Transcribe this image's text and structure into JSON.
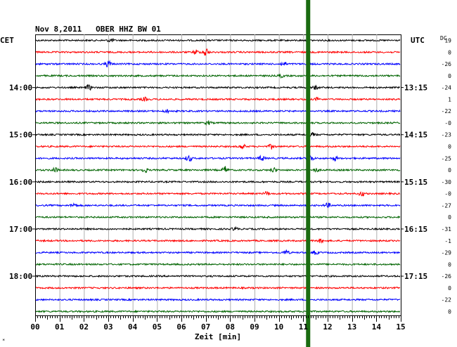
{
  "chart_data": {
    "type": "line",
    "title": "Nov 8,2011   OBER HHZ BW 01",
    "left_timezone": "CET",
    "right_timezone": "UTC",
    "dc_label": "DC",
    "xlabel": "Zeit [min]",
    "xlim": [
      0,
      15
    ],
    "x_ticks": [
      "00",
      "01",
      "02",
      "03",
      "04",
      "05",
      "06",
      "07",
      "08",
      "09",
      "10",
      "11",
      "12",
      "13",
      "14",
      "15"
    ],
    "grid": true,
    "trace_colors": [
      "#000000",
      "#ff0000",
      "#0000ff",
      "#006400"
    ],
    "highlight_color": "#1a6b10",
    "highlight_minute": 11.2,
    "left_hour_labels": [
      {
        "trace": 4,
        "label": "14:00"
      },
      {
        "trace": 8,
        "label": "15:00"
      },
      {
        "trace": 12,
        "label": "16:00"
      },
      {
        "trace": 16,
        "label": "17:00"
      },
      {
        "trace": 20,
        "label": "18:00"
      }
    ],
    "right_hour_labels": [
      {
        "trace": 4,
        "label": "13:15"
      },
      {
        "trace": 8,
        "label": "14:15"
      },
      {
        "trace": 12,
        "label": "15:15"
      },
      {
        "trace": 16,
        "label": "16:15"
      },
      {
        "trace": 20,
        "label": "17:15"
      }
    ],
    "dc_offsets": [
      "19",
      "0",
      "-26",
      "0",
      "-24",
      "1",
      "-22",
      "-0",
      "-23",
      "0",
      "-25",
      "0",
      "-30",
      "-0",
      "-27",
      "0",
      "-31",
      "-1",
      "-29",
      "0",
      "-26",
      "0",
      "-22",
      "0"
    ],
    "events": [
      {
        "trace": 0,
        "minute": 3.1,
        "amp": 1.2
      },
      {
        "trace": 1,
        "minute": 7.0,
        "amp": 3.2
      },
      {
        "trace": 1,
        "minute": 6.6,
        "amp": 1.5
      },
      {
        "trace": 2,
        "minute": 3.0,
        "amp": 2.2
      },
      {
        "trace": 2,
        "minute": 10.2,
        "amp": 1.4
      },
      {
        "trace": 3,
        "minute": 10.1,
        "amp": 1.0
      },
      {
        "trace": 4,
        "minute": 2.2,
        "amp": 1.8
      },
      {
        "trace": 4,
        "minute": 11.5,
        "amp": 1.3
      },
      {
        "trace": 5,
        "minute": 4.5,
        "amp": 1.2
      },
      {
        "trace": 5,
        "minute": 11.6,
        "amp": 1.2
      },
      {
        "trace": 6,
        "minute": 5.4,
        "amp": 1.0
      },
      {
        "trace": 7,
        "minute": 7.1,
        "amp": 1.2
      },
      {
        "trace": 8,
        "minute": 11.4,
        "amp": 1.1
      },
      {
        "trace": 9,
        "minute": 8.5,
        "amp": 1.6
      },
      {
        "trace": 9,
        "minute": 9.7,
        "amp": 1.5
      },
      {
        "trace": 10,
        "minute": 6.3,
        "amp": 2.2
      },
      {
        "trace": 10,
        "minute": 9.3,
        "amp": 1.8
      },
      {
        "trace": 10,
        "minute": 11.3,
        "amp": 2.2
      },
      {
        "trace": 10,
        "minute": 12.3,
        "amp": 1.4
      },
      {
        "trace": 11,
        "minute": 0.8,
        "amp": 1.8
      },
      {
        "trace": 11,
        "minute": 4.5,
        "amp": 1.6
      },
      {
        "trace": 11,
        "minute": 7.8,
        "amp": 2.2
      },
      {
        "trace": 11,
        "minute": 9.8,
        "amp": 1.5
      },
      {
        "trace": 11,
        "minute": 11.5,
        "amp": 1.4
      },
      {
        "trace": 13,
        "minute": 9.5,
        "amp": 1.3
      },
      {
        "trace": 13,
        "minute": 13.4,
        "amp": 1.6
      },
      {
        "trace": 14,
        "minute": 1.6,
        "amp": 1.4
      },
      {
        "trace": 14,
        "minute": 12.0,
        "amp": 1.5
      },
      {
        "trace": 16,
        "minute": 8.2,
        "amp": 1.0
      },
      {
        "trace": 17,
        "minute": 11.7,
        "amp": 1.1
      },
      {
        "trace": 18,
        "minute": 10.3,
        "amp": 1.6
      },
      {
        "trace": 18,
        "minute": 11.5,
        "amp": 1.2
      }
    ]
  }
}
